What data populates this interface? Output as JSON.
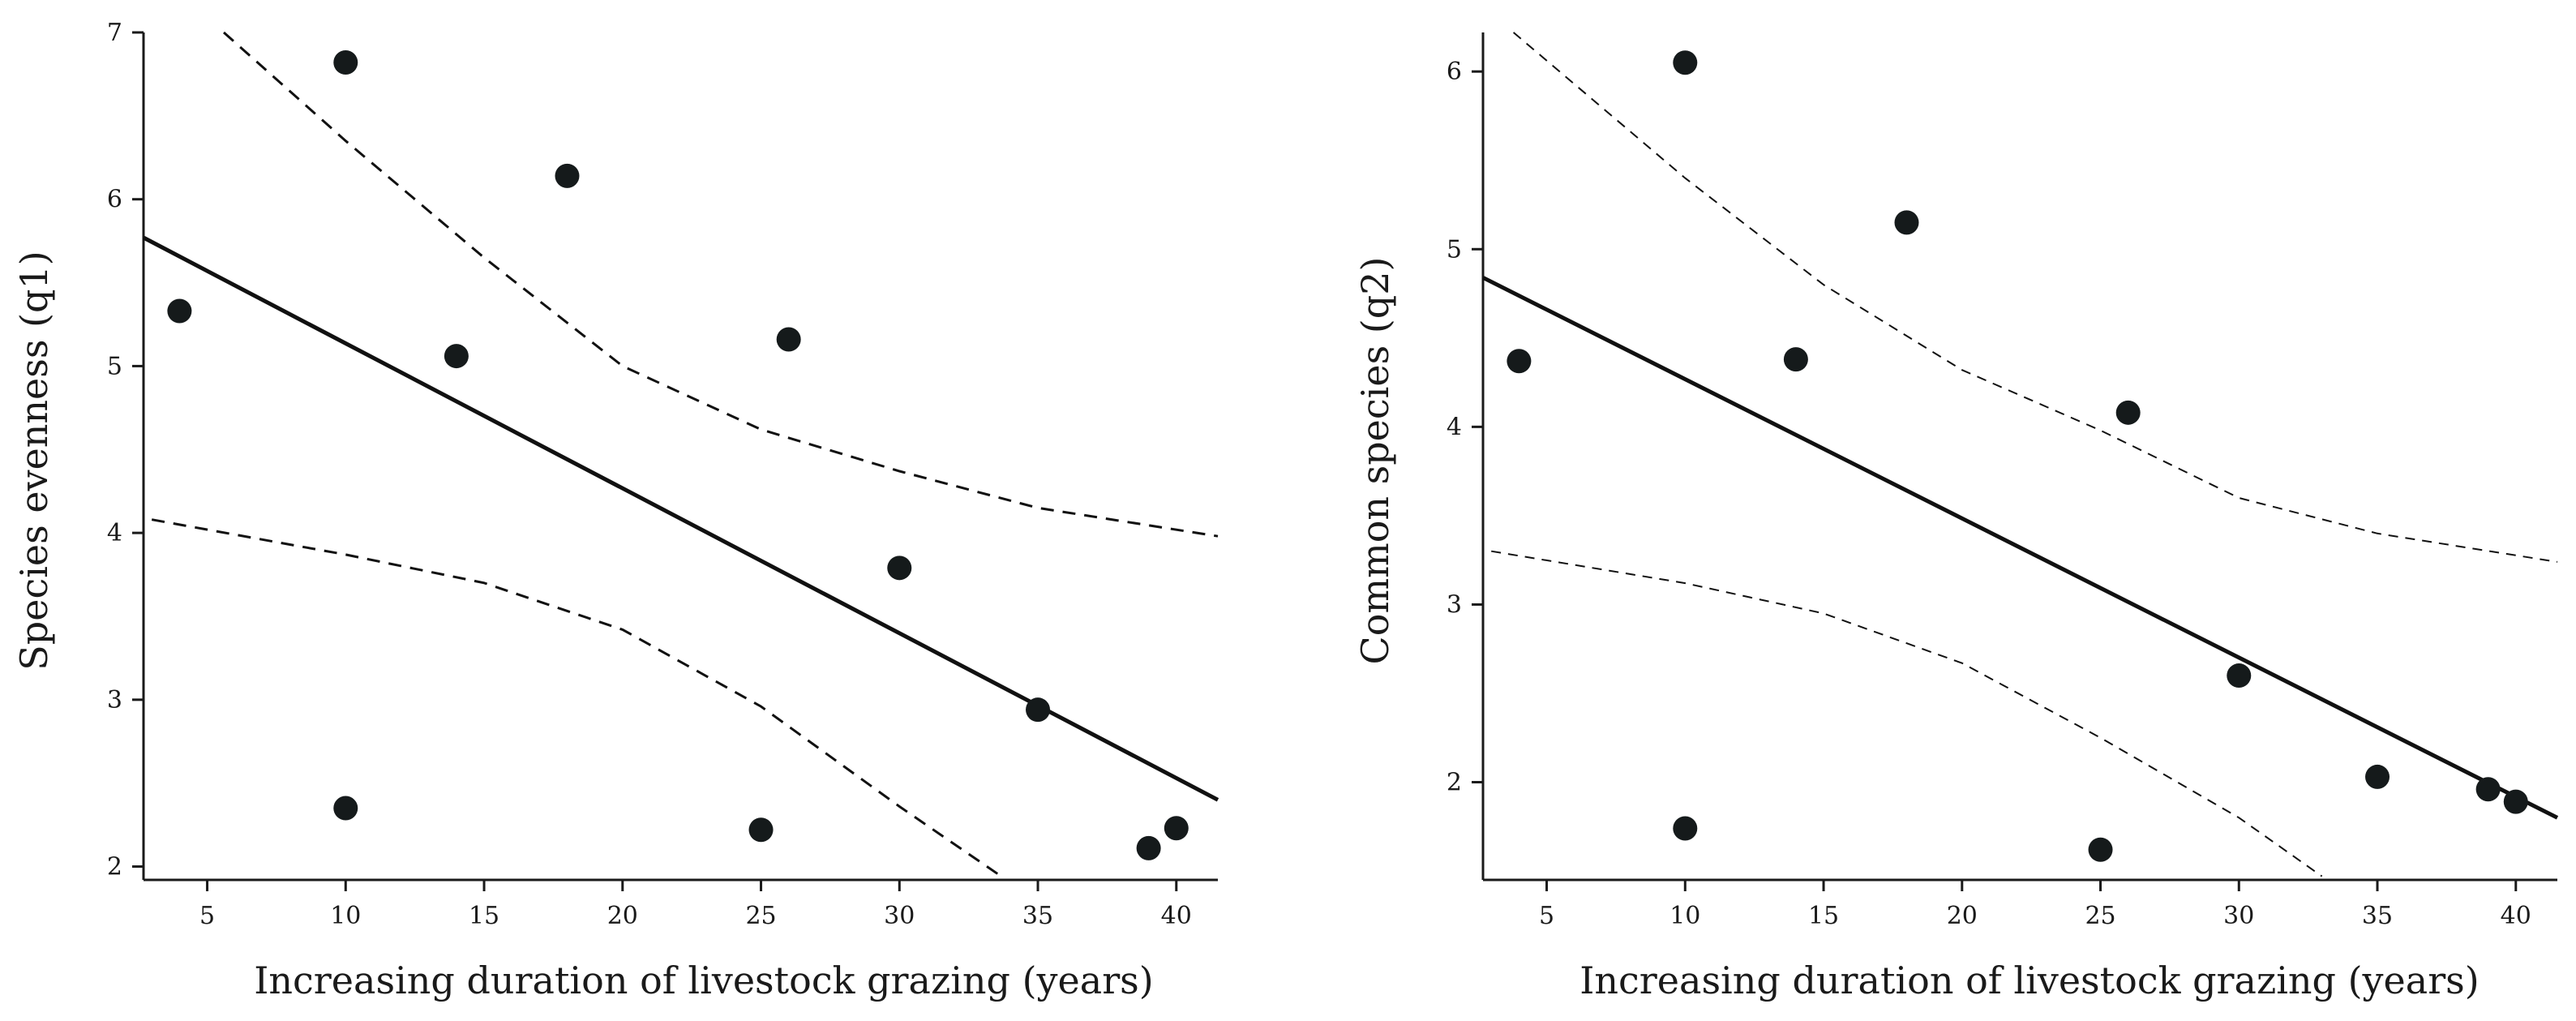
{
  "chart_data": [
    {
      "type": "scatter",
      "title": "",
      "xlabel": "Increasing duration of livestock grazing (years)",
      "ylabel": "Species evenness (q1)",
      "xlim": [
        2.7,
        41.5
      ],
      "ylim": [
        1.92,
        7.0
      ],
      "xticks": [
        5,
        10,
        15,
        20,
        25,
        30,
        35,
        40
      ],
      "yticks": [
        2,
        3,
        4,
        5,
        6,
        7
      ],
      "grid": false,
      "series": [
        {
          "name": "observations",
          "x": [
            4,
            10,
            10,
            14,
            18,
            25,
            26,
            30,
            35,
            39,
            40
          ],
          "y": [
            5.33,
            6.82,
            2.35,
            5.06,
            6.14,
            2.22,
            5.16,
            3.79,
            2.94,
            2.11,
            2.23
          ]
        }
      ],
      "fit": {
        "name": "linear fit",
        "x": [
          2.7,
          41.5
        ],
        "y": [
          5.77,
          2.4
        ]
      },
      "ci_upper": {
        "name": "upper confidence band",
        "x": [
          5.6,
          10,
          15,
          20,
          25,
          30,
          35,
          41.5
        ],
        "y": [
          7.0,
          6.35,
          5.65,
          5.0,
          4.62,
          4.37,
          4.15,
          3.98
        ]
      },
      "ci_lower": {
        "name": "lower confidence band",
        "x": [
          3,
          10,
          15,
          20,
          25,
          30,
          33.6
        ],
        "y": [
          4.08,
          3.87,
          3.7,
          3.42,
          2.96,
          2.36,
          1.95
        ]
      }
    },
    {
      "type": "scatter",
      "title": "",
      "xlabel": "Increasing duration of livestock grazing (years)",
      "ylabel": "Common species (q2)",
      "xlim": [
        2.7,
        41.5
      ],
      "ylim": [
        1.45,
        6.22
      ],
      "xticks": [
        5,
        10,
        15,
        20,
        25,
        30,
        35,
        40
      ],
      "yticks": [
        2,
        3,
        4,
        5,
        6
      ],
      "grid": false,
      "series": [
        {
          "name": "observations",
          "x": [
            4,
            10,
            10,
            14,
            18,
            25,
            26,
            30,
            35,
            39,
            40
          ],
          "y": [
            4.37,
            6.05,
            1.74,
            4.38,
            5.15,
            1.62,
            4.08,
            2.6,
            2.03,
            1.96,
            1.89
          ]
        }
      ],
      "fit": {
        "name": "linear fit",
        "x": [
          2.7,
          41.5
        ],
        "y": [
          4.84,
          1.8
        ]
      },
      "ci_upper": {
        "name": "upper confidence band",
        "x": [
          3.8,
          10,
          15,
          20,
          25,
          30,
          35,
          41.5
        ],
        "y": [
          6.22,
          5.4,
          4.8,
          4.32,
          3.98,
          3.6,
          3.4,
          3.24
        ]
      },
      "ci_lower": {
        "name": "lower confidence band",
        "x": [
          3,
          10,
          15,
          20,
          25,
          30,
          33
        ],
        "y": [
          3.3,
          3.12,
          2.95,
          2.67,
          2.25,
          1.8,
          1.47
        ]
      }
    }
  ]
}
